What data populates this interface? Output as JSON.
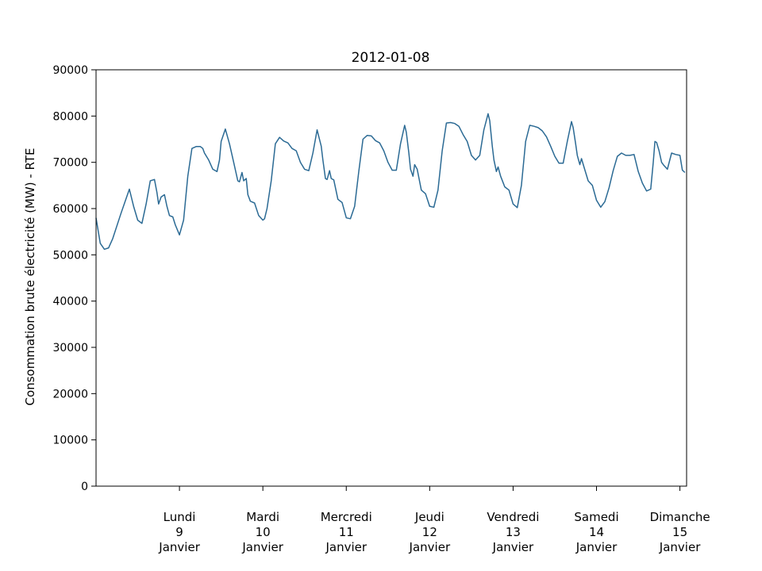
{
  "chart_data": {
    "type": "line",
    "title": "2012-01-08",
    "xlabel": "",
    "ylabel": "Consommation brute électricité (MW) - RTE",
    "ylim": [
      0,
      90000
    ],
    "yticks": [
      0,
      10000,
      20000,
      30000,
      40000,
      50000,
      60000,
      70000,
      80000,
      90000
    ],
    "xlim_days": [
      0,
      7.08
    ],
    "grid": false,
    "legend": "none",
    "line_color": "#2b6a94",
    "xtick_labels": [
      {
        "day": "Lundi",
        "num": "9",
        "month": "Janvier",
        "x": 1
      },
      {
        "day": "Mardi",
        "num": "10",
        "month": "Janvier",
        "x": 2
      },
      {
        "day": "Mercredi",
        "num": "11",
        "month": "Janvier",
        "x": 3
      },
      {
        "day": "Jeudi",
        "num": "12",
        "month": "Janvier",
        "x": 4
      },
      {
        "day": "Vendredi",
        "num": "13",
        "month": "Janvier",
        "x": 5
      },
      {
        "day": "Samedi",
        "num": "14",
        "month": "Janvier",
        "x": 6
      },
      {
        "day": "Dimanche",
        "num": "15",
        "month": "Janvier",
        "x": 7
      }
    ],
    "series": [
      {
        "x": [
          0,
          0.05,
          0.1,
          0.15,
          0.2,
          0.3,
          0.4,
          0.45,
          0.5,
          0.55,
          0.6,
          0.65,
          0.7,
          0.73,
          0.75,
          0.78,
          0.82,
          0.85,
          0.88,
          0.92,
          0.95,
          1.0,
          1.05,
          1.1,
          1.15,
          1.2,
          1.25,
          1.28,
          1.3,
          1.35,
          1.4,
          1.45,
          1.48,
          1.5,
          1.55,
          1.6,
          1.65,
          1.7,
          1.72,
          1.75,
          1.77,
          1.8,
          1.82,
          1.85,
          1.9,
          1.95,
          2.0,
          2.02,
          2.05,
          2.1,
          2.15,
          2.2,
          2.25,
          2.3,
          2.35,
          2.4,
          2.45,
          2.5,
          2.55,
          2.6,
          2.65,
          2.7,
          2.72,
          2.75,
          2.77,
          2.8,
          2.82,
          2.85,
          2.9,
          2.95,
          3.0,
          3.05,
          3.1,
          3.15,
          3.2,
          3.25,
          3.3,
          3.35,
          3.4,
          3.45,
          3.5,
          3.55,
          3.6,
          3.65,
          3.7,
          3.72,
          3.75,
          3.77,
          3.8,
          3.82,
          3.85,
          3.9,
          3.95,
          4.0,
          4.05,
          4.1,
          4.15,
          4.2,
          4.25,
          4.3,
          4.35,
          4.4,
          4.45,
          4.5,
          4.55,
          4.6,
          4.65,
          4.7,
          4.72,
          4.75,
          4.77,
          4.8,
          4.82,
          4.85,
          4.9,
          4.95,
          5.0,
          5.05,
          5.1,
          5.15,
          5.2,
          5.25,
          5.3,
          5.35,
          5.4,
          5.45,
          5.5,
          5.55,
          5.6,
          5.65,
          5.7,
          5.72,
          5.75,
          5.77,
          5.8,
          5.82,
          5.85,
          5.9,
          5.95,
          6.0,
          6.05,
          6.1,
          6.15,
          6.2,
          6.25,
          6.3,
          6.35,
          6.4,
          6.45,
          6.5,
          6.55,
          6.6,
          6.65,
          6.68,
          6.7,
          6.72,
          6.75,
          6.78,
          6.8,
          6.85,
          6.9,
          6.95,
          7.0,
          7.03,
          7.06
        ],
        "y": [
          58000,
          52500,
          51200,
          51500,
          53500,
          59000,
          64200,
          60500,
          57500,
          56800,
          61000,
          66000,
          66300,
          63500,
          61000,
          62500,
          63000,
          60500,
          58500,
          58200,
          56500,
          54300,
          57500,
          67000,
          73000,
          73400,
          73400,
          73000,
          72000,
          70500,
          68500,
          68000,
          70500,
          74500,
          77200,
          74000,
          70000,
          66000,
          65800,
          67800,
          66000,
          66500,
          63000,
          61600,
          61200,
          58500,
          57500,
          57800,
          60000,
          66000,
          74000,
          75400,
          74600,
          74200,
          73000,
          72500,
          70000,
          68500,
          68200,
          72000,
          77000,
          73500,
          70500,
          66500,
          66300,
          68200,
          66500,
          66200,
          62000,
          61300,
          58000,
          57800,
          60500,
          68000,
          75000,
          75800,
          75700,
          74700,
          74200,
          72500,
          70000,
          68300,
          68300,
          74000,
          78000,
          76500,
          72000,
          68500,
          67000,
          69500,
          68500,
          64000,
          63200,
          60500,
          60300,
          64000,
          72500,
          78500,
          78600,
          78400,
          77800,
          76000,
          74500,
          71500,
          70500,
          71500,
          77000,
          80500,
          79000,
          73500,
          70500,
          68000,
          69000,
          67000,
          64700,
          64000,
          61000,
          60200,
          65000,
          74500,
          78000,
          77800,
          77500,
          76800,
          75500,
          73500,
          71300,
          69800,
          69800,
          74500,
          78800,
          77500,
          74000,
          71500,
          69500,
          70800,
          69000,
          66000,
          65000,
          61800,
          60300,
          61500,
          64500,
          68200,
          71300,
          72000,
          71500,
          71500,
          71700,
          68000,
          65500,
          63800,
          64200,
          70000,
          74500,
          74300,
          72500,
          70000,
          69500,
          68500,
          72000,
          71700,
          71500,
          68300,
          67800
        ]
      }
    ]
  }
}
